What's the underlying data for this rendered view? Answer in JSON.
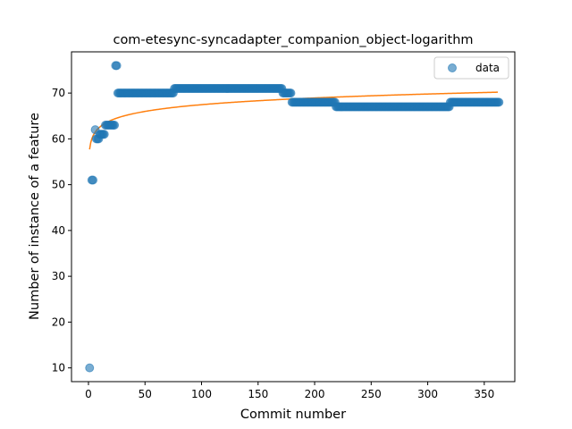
{
  "chart_data": {
    "type": "scatter",
    "title": "com-etesync-syncadapter_companion_object-logarithm",
    "xlabel": "Commit number",
    "ylabel": "Number of instance of a feature",
    "xlim": [
      -15,
      377
    ],
    "ylim": [
      7,
      79
    ],
    "xticks": [
      0,
      50,
      100,
      150,
      200,
      250,
      300,
      350
    ],
    "yticks": [
      10,
      20,
      30,
      40,
      50,
      60,
      70
    ],
    "grid": false,
    "legend": {
      "placement": "top-right",
      "entries": [
        "data"
      ]
    },
    "colors": {
      "data": "#1f77b4",
      "fit": "#ff7f0e"
    },
    "series": [
      {
        "name": "data",
        "kind": "scatter",
        "segments": [
          {
            "x_from": 1,
            "x_to": 1,
            "y": 10
          },
          {
            "x_from": 3,
            "x_to": 4,
            "y": 51
          },
          {
            "x_from": 6,
            "x_to": 6,
            "y": 62
          },
          {
            "x_from": 7,
            "x_to": 9,
            "y": 60
          },
          {
            "x_from": 10,
            "x_to": 14,
            "y": 61
          },
          {
            "x_from": 15,
            "x_to": 23,
            "y": 63
          },
          {
            "x_from": 24,
            "x_to": 25,
            "y": 76
          },
          {
            "x_from": 26,
            "x_to": 75,
            "y": 70
          },
          {
            "x_from": 76,
            "x_to": 171,
            "y": 71
          },
          {
            "x_from": 172,
            "x_to": 179,
            "y": 70
          },
          {
            "x_from": 180,
            "x_to": 218,
            "y": 68
          },
          {
            "x_from": 219,
            "x_to": 319,
            "y": 67
          },
          {
            "x_from": 320,
            "x_to": 363,
            "y": 68
          }
        ]
      },
      {
        "kind": "line",
        "model": "a + b*ln(x)",
        "params": {
          "a": 57.7,
          "b": 2.12
        },
        "x_range": [
          1,
          362
        ]
      }
    ]
  }
}
